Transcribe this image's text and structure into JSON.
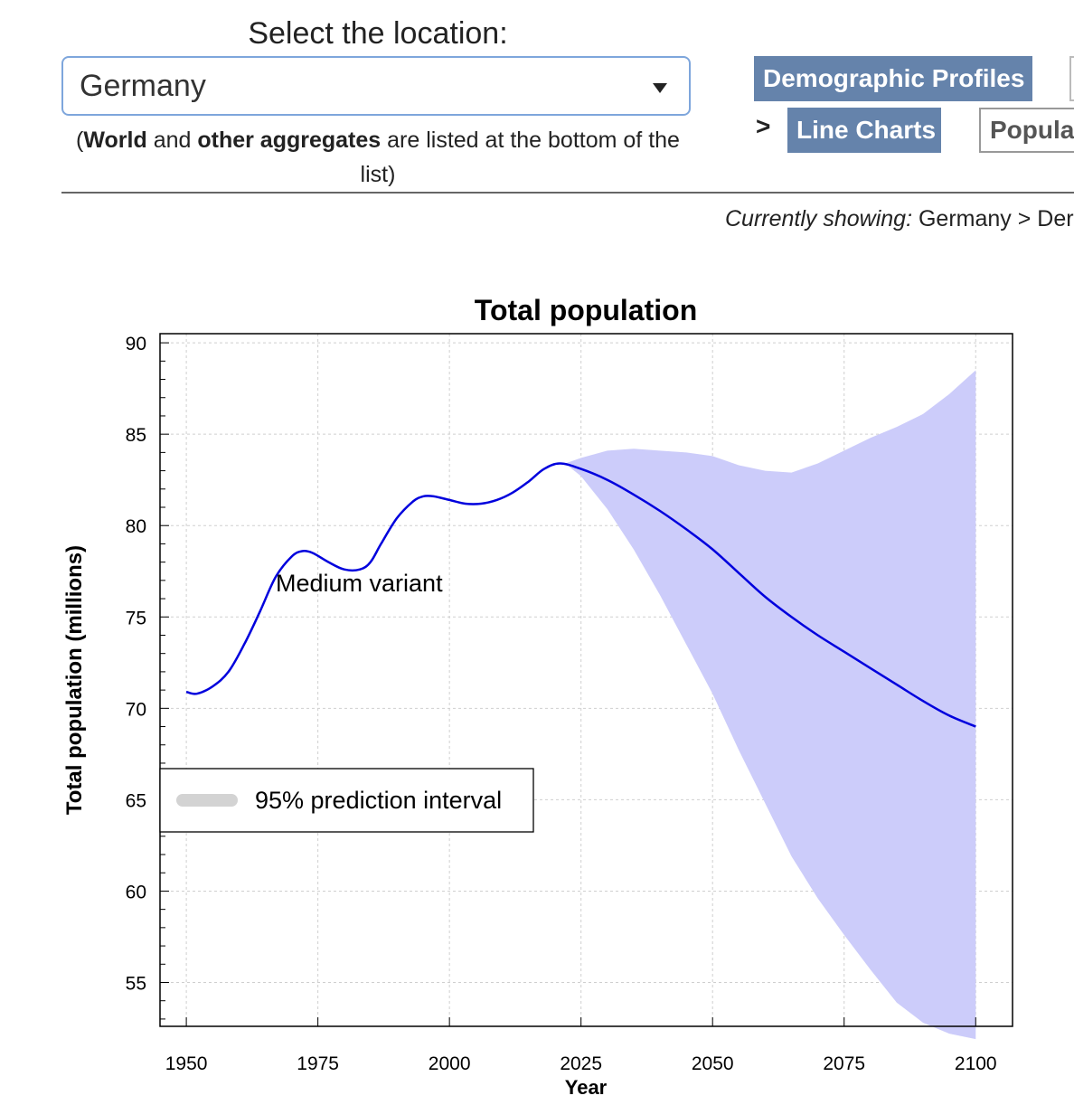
{
  "location_selector": {
    "title": "Select the location:",
    "selected": "Germany",
    "note_world": "World",
    "note_and": " and ",
    "note_other": "other aggregates",
    "note_rest": " are listed at the bottom of the list)",
    "note_open": "("
  },
  "nav": {
    "demographic_profiles": "Demographic Profiles",
    "separator": ">",
    "line_charts": "Line Charts",
    "population_partial": "Populat"
  },
  "currently_showing": {
    "label": "Currently showing:",
    "value": " Germany > Der"
  },
  "colors": {
    "line": "#0000dd",
    "band": "#ccccfa",
    "legend_swatch": "#d3d3d3",
    "button": "#6583ab"
  },
  "chart_data": {
    "type": "line",
    "title": "Total population",
    "xlabel": "Year",
    "ylabel": "Total population (millions)",
    "xlim": [
      1945,
      2107
    ],
    "ylim": [
      52.6,
      90.5
    ],
    "xticks": [
      1950,
      1975,
      2000,
      2025,
      2050,
      2075,
      2100
    ],
    "yticks": [
      55,
      60,
      65,
      70,
      75,
      80,
      85,
      90
    ],
    "grid": true,
    "series": [
      {
        "name": "Medium variant",
        "x": [
          1950,
          1952,
          1955,
          1958,
          1961,
          1964,
          1967,
          1970,
          1972,
          1974,
          1977,
          1980,
          1983,
          1985,
          1987,
          1990,
          1993,
          1995,
          1997,
          2000,
          2003,
          2006,
          2009,
          2012,
          2015,
          2018,
          2021,
          2025,
          2030,
          2035,
          2040,
          2045,
          2050,
          2055,
          2060,
          2065,
          2070,
          2075,
          2080,
          2085,
          2090,
          2095,
          2100
        ],
        "values": [
          70.9,
          70.8,
          71.2,
          72.0,
          73.5,
          75.3,
          77.2,
          78.3,
          78.6,
          78.5,
          78.0,
          77.6,
          77.6,
          78.0,
          79.0,
          80.4,
          81.3,
          81.6,
          81.6,
          81.4,
          81.2,
          81.2,
          81.4,
          81.8,
          82.4,
          83.1,
          83.4,
          83.1,
          82.5,
          81.7,
          80.8,
          79.8,
          78.7,
          77.4,
          76.1,
          75.0,
          74.0,
          73.1,
          72.2,
          71.3,
          70.4,
          69.6,
          69.0
        ]
      }
    ],
    "interval": {
      "name": "95% prediction interval",
      "x": [
        2022,
        2025,
        2030,
        2035,
        2040,
        2045,
        2050,
        2055,
        2060,
        2065,
        2070,
        2075,
        2080,
        2085,
        2090,
        2095,
        2100
      ],
      "upper": [
        83.4,
        83.7,
        84.1,
        84.2,
        84.1,
        84.0,
        83.8,
        83.3,
        83.0,
        82.9,
        83.4,
        84.1,
        84.8,
        85.4,
        86.1,
        87.2,
        88.5
      ],
      "lower": [
        83.4,
        82.7,
        80.9,
        78.7,
        76.2,
        73.5,
        70.8,
        67.7,
        64.8,
        61.9,
        59.6,
        57.6,
        55.7,
        53.9,
        52.8,
        52.2,
        51.9
      ]
    },
    "annotation": "Medium variant",
    "legend": {
      "position": "center-left"
    }
  }
}
